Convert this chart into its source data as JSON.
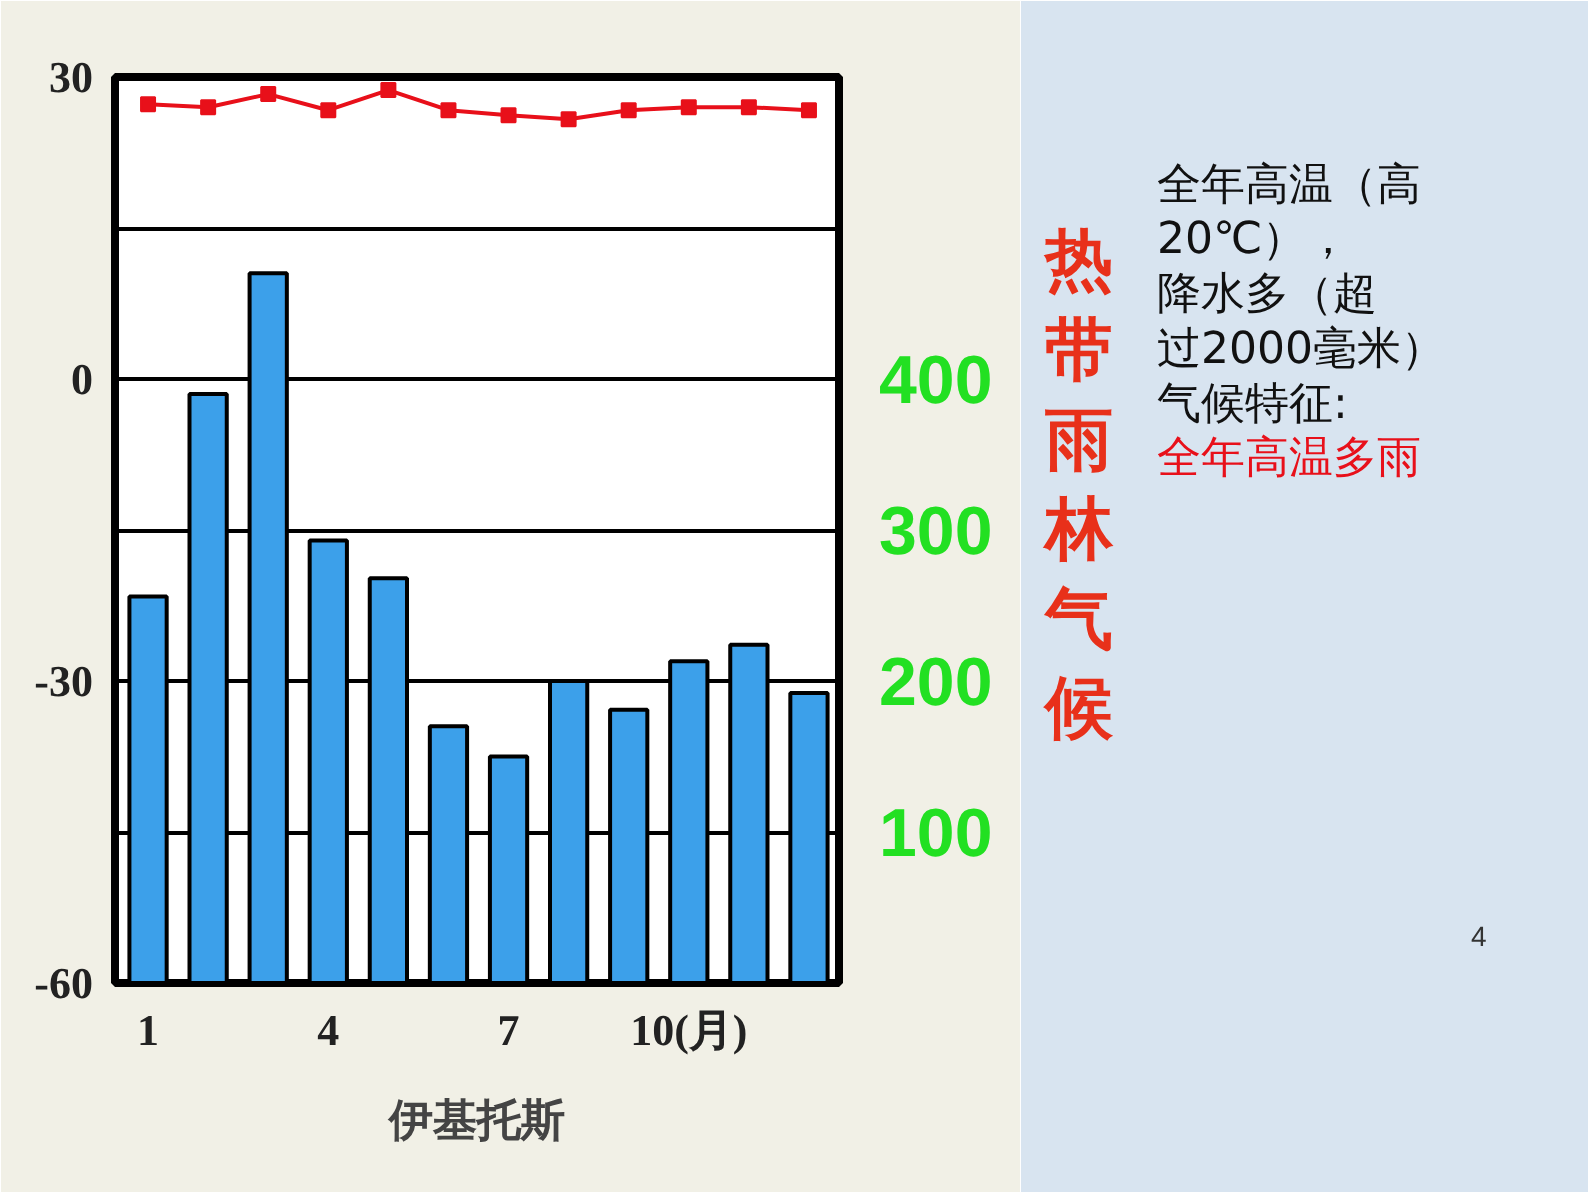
{
  "chart_data": {
    "type": "bar",
    "title": "热带雨林气候",
    "xlabel": "伊基托斯",
    "x": [
      1,
      2,
      3,
      4,
      5,
      6,
      7,
      8,
      9,
      10,
      11,
      12
    ],
    "xlim": [
      0.45,
      12.5
    ],
    "xticks": [
      1,
      4,
      7,
      {
        "value": 10,
        "label": "10(月)"
      }
    ],
    "ylim": [
      -60,
      30
    ],
    "yticks": [
      30,
      {
        "value": 15,
        "label": null
      },
      0,
      {
        "value": -15,
        "label": null
      },
      -30,
      {
        "value": -45,
        "label": null
      },
      -60
    ],
    "y2lim": [
      0,
      600
    ],
    "y2ticks": [
      100,
      200,
      300,
      400
    ],
    "grid": "y",
    "series": [
      {
        "axis": "y2",
        "color": "#3ca0ea",
        "values": [
          256,
          390,
          470,
          293,
          268,
          170,
          150,
          200,
          181,
          213,
          224,
          192
        ]
      },
      {
        "type": "line",
        "axis": "y",
        "color": "#e8101a",
        "marker": "square",
        "values": [
          27.3,
          27.0,
          28.3,
          26.7,
          28.7,
          26.7,
          26.2,
          25.8,
          26.7,
          27.0,
          27.0,
          26.7
        ]
      }
    ],
    "annotations": [
      "全年高温（高20℃），",
      "降水多（超过2000毫米）",
      "气候特征:",
      "全年高温多雨",
      "4"
    ]
  }
}
